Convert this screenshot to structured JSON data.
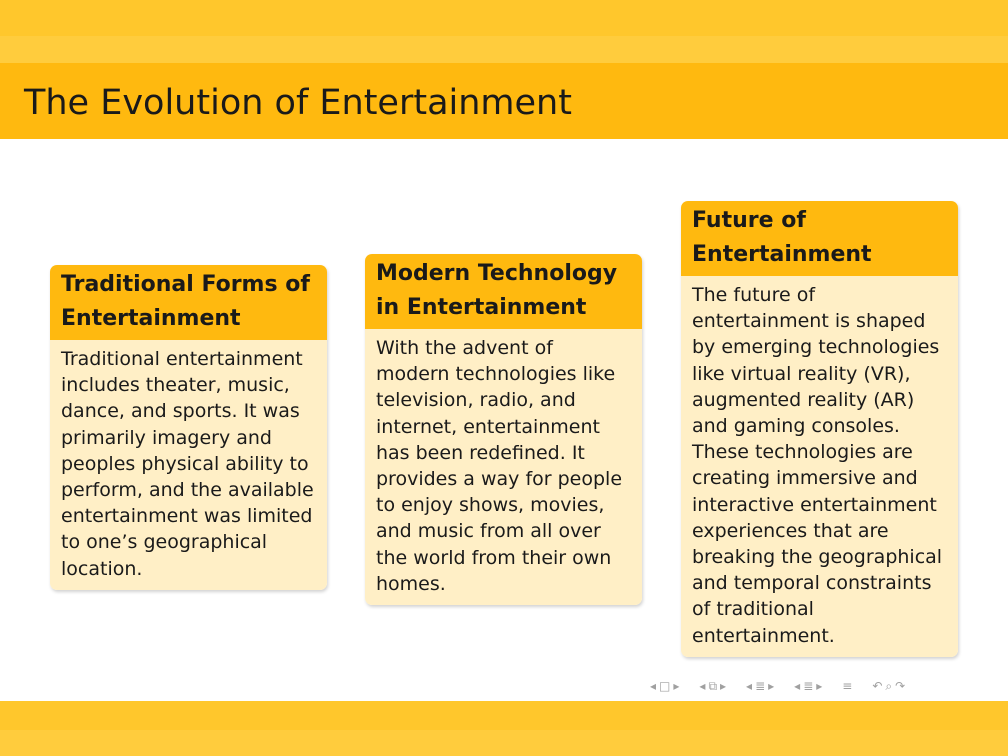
{
  "slide": {
    "title": "The Evolution of Entertainment"
  },
  "blocks": [
    {
      "title": "Traditional Forms of Entertainment",
      "body": "Traditional entertainment includes theater, music, dance, and sports. It was primarily imagery and peoples physical ability to perform, and the available entertainment was limited to one’s geographical location."
    },
    {
      "title": "Modern Technology in Entertainment",
      "body": "With the advent of modern technologies like television, radio, and internet, entertainment has been redefined. It provides a way for people to enjoy shows, movies, and music from all over the world from their own homes."
    },
    {
      "title": "Future of Entertainment",
      "body": "The future of entertainment is shaped by emerging technologies like virtual reality (VR), augmented reality (AR) and gaming consoles. These technologies are creating immersive and interactive entertainment experiences that are breaking the geographical and temporal constraints of traditional entertainment."
    }
  ],
  "navigation": {
    "icons": [
      "arrow-left-icon",
      "frame-icon",
      "arrow-right-icon",
      "arrow-left-icon",
      "subsection-icon",
      "arrow-right-icon",
      "arrow-left-icon",
      "section-icon",
      "arrow-right-icon",
      "arrow-left-icon",
      "section-icon",
      "arrow-right-icon",
      "outline-icon",
      "back-icon",
      "search-icon",
      "forward-icon"
    ]
  }
}
